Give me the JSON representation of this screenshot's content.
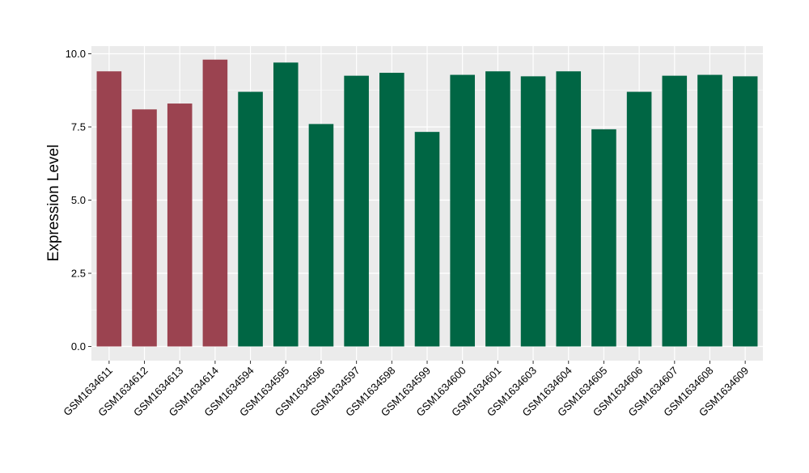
{
  "chart_data": {
    "type": "bar",
    "title": "",
    "xlabel": "",
    "ylabel": "Expression Level",
    "ylim": [
      0,
      10.35
    ],
    "yticks": [
      0.0,
      2.5,
      5.0,
      7.5,
      10.0
    ],
    "ytick_labels": [
      "0.0",
      "2.5",
      "5.0",
      "7.5",
      "10.0"
    ],
    "grid": true,
    "legend": "none",
    "categories": [
      "GSM1634611",
      "GSM1634612",
      "GSM1634613",
      "GSM1634614",
      "GSM1634594",
      "GSM1634595",
      "GSM1634596",
      "GSM1634597",
      "GSM1634598",
      "GSM1634599",
      "GSM1634600",
      "GSM1634601",
      "GSM1634603",
      "GSM1634604",
      "GSM1634605",
      "GSM1634606",
      "GSM1634607",
      "GSM1634608",
      "GSM1634609"
    ],
    "values": [
      9.4,
      8.1,
      8.3,
      9.8,
      8.7,
      9.7,
      7.6,
      9.25,
      9.35,
      7.33,
      9.28,
      9.4,
      9.23,
      9.4,
      7.42,
      8.7,
      9.25,
      9.28,
      9.23
    ],
    "bar_colors": [
      "#9b4350",
      "#9b4350",
      "#9b4350",
      "#9b4350",
      "#006644",
      "#006644",
      "#006644",
      "#006644",
      "#006644",
      "#006644",
      "#006644",
      "#006644",
      "#006644",
      "#006644",
      "#006644",
      "#006644",
      "#006644",
      "#006644",
      "#006644"
    ],
    "panel_background": "#ebebeb",
    "grid_color": "#ffffff"
  }
}
